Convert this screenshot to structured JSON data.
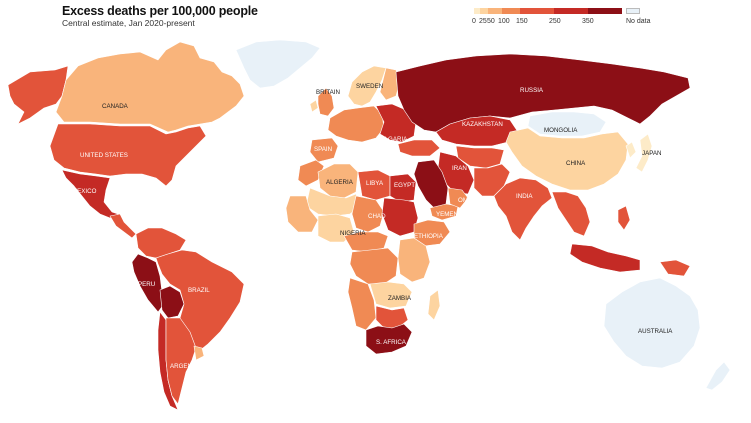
{
  "header": {
    "title": "Excess deaths per 100,000 people",
    "subtitle": "Central estimate, Jan 2020-present"
  },
  "legend": {
    "ticks": [
      "0",
      "25",
      "50",
      "100",
      "150",
      "250",
      "350"
    ],
    "scale_values": [
      0,
      25,
      50,
      100,
      150,
      250,
      350,
      450
    ],
    "colors": [
      "#fdebc8",
      "#fdd4a0",
      "#f9b47b",
      "#f08a54",
      "#e2543a",
      "#c42a25",
      "#8c0f16"
    ],
    "no_data_label": "No data",
    "no_data_color": "#e8f1f8"
  },
  "colors": {
    "ocean": "#ffffff",
    "border": "#ffffff"
  },
  "map": {
    "countries": [
      {
        "key": "canada",
        "label": "CANADA",
        "bin": 2,
        "label_dark": true
      },
      {
        "key": "alaska",
        "label": "",
        "bin": 4
      },
      {
        "key": "greenland",
        "label": "",
        "bin": -1
      },
      {
        "key": "united_states",
        "label": "UNITED STATES",
        "bin": 4
      },
      {
        "key": "mexico",
        "label": "MEXICO",
        "bin": 5
      },
      {
        "key": "central_america",
        "label": "",
        "bin": 4
      },
      {
        "key": "colombia_ven",
        "label": "",
        "bin": 4
      },
      {
        "key": "peru",
        "label": "PERU",
        "bin": 6
      },
      {
        "key": "bolivia",
        "label": "",
        "bin": 6
      },
      {
        "key": "brazil",
        "label": "BRAZIL",
        "bin": 4
      },
      {
        "key": "argentina",
        "label": "ARGENTINA",
        "bin": 4
      },
      {
        "key": "chile",
        "label": "",
        "bin": 5
      },
      {
        "key": "uruguay",
        "label": "",
        "bin": 2
      },
      {
        "key": "britain",
        "label": "BRITAIN",
        "bin": 3,
        "label_dark": true
      },
      {
        "key": "ireland",
        "label": "",
        "bin": 1
      },
      {
        "key": "scandinavia",
        "label": "SWEDEN",
        "bin": 1,
        "label_dark": true
      },
      {
        "key": "finland",
        "label": "",
        "bin": 2
      },
      {
        "key": "west_europe",
        "label": "",
        "bin": 3
      },
      {
        "key": "spain",
        "label": "SPAIN",
        "bin": 3
      },
      {
        "key": "east_europe",
        "label": "BULGARIA",
        "bin": 5
      },
      {
        "key": "russia",
        "label": "RUSSIA",
        "bin": 6
      },
      {
        "key": "kazakhstan",
        "label": "KAZAKHSTAN",
        "bin": 5
      },
      {
        "key": "mongolia",
        "label": "MONGOLIA",
        "bin": -1,
        "label_dark": true
      },
      {
        "key": "china",
        "label": "CHINA",
        "bin": 1,
        "label_dark": true
      },
      {
        "key": "japan",
        "label": "JAPAN",
        "bin": 0,
        "label_dark": true
      },
      {
        "key": "korea",
        "label": "",
        "bin": 0
      },
      {
        "key": "turkey",
        "label": "",
        "bin": 4
      },
      {
        "key": "iran",
        "label": "IRAN",
        "bin": 5
      },
      {
        "key": "saudi",
        "label": "",
        "bin": 6
      },
      {
        "key": "central_asia",
        "label": "",
        "bin": 4
      },
      {
        "key": "pakistan_afg",
        "label": "",
        "bin": 4
      },
      {
        "key": "india",
        "label": "INDIA",
        "bin": 4
      },
      {
        "key": "yemen",
        "label": "YEMEN",
        "bin": 3
      },
      {
        "key": "oman",
        "label": "OMAN",
        "bin": 3
      },
      {
        "key": "se_asia",
        "label": "",
        "bin": 4
      },
      {
        "key": "indonesia",
        "label": "",
        "bin": 5
      },
      {
        "key": "philippines",
        "label": "",
        "bin": 4
      },
      {
        "key": "png",
        "label": "",
        "bin": 4
      },
      {
        "key": "australia",
        "label": "AUSTRALIA",
        "bin": -1,
        "label_dark": true
      },
      {
        "key": "new_zealand",
        "label": "",
        "bin": -1
      },
      {
        "key": "morocco",
        "label": "",
        "bin": 3
      },
      {
        "key": "algeria",
        "label": "ALGERIA",
        "bin": 2,
        "label_dark": true
      },
      {
        "key": "libya",
        "label": "LIBYA",
        "bin": 4
      },
      {
        "key": "egypt",
        "label": "EGYPT",
        "bin": 5
      },
      {
        "key": "west_africa",
        "label": "",
        "bin": 2
      },
      {
        "key": "niger_mali",
        "label": "",
        "bin": 1
      },
      {
        "key": "chad",
        "label": "CHAD",
        "bin": 3
      },
      {
        "key": "sudan",
        "label": "",
        "bin": 5
      },
      {
        "key": "nigeria",
        "label": "NIGERIA",
        "bin": 1,
        "label_dark": true
      },
      {
        "key": "ethiopia",
        "label": "ETHIOPIA",
        "bin": 3
      },
      {
        "key": "central_africa",
        "label": "",
        "bin": 3
      },
      {
        "key": "drc",
        "label": "",
        "bin": 3
      },
      {
        "key": "east_africa",
        "label": "",
        "bin": 2
      },
      {
        "key": "zambia",
        "label": "ZAMBIA",
        "bin": 1,
        "label_dark": true
      },
      {
        "key": "angola_nam",
        "label": "",
        "bin": 3
      },
      {
        "key": "botswana",
        "label": "",
        "bin": 4
      },
      {
        "key": "s_africa",
        "label": "S. AFRICA",
        "bin": 6
      },
      {
        "key": "madagascar",
        "label": "",
        "bin": 1
      }
    ]
  }
}
